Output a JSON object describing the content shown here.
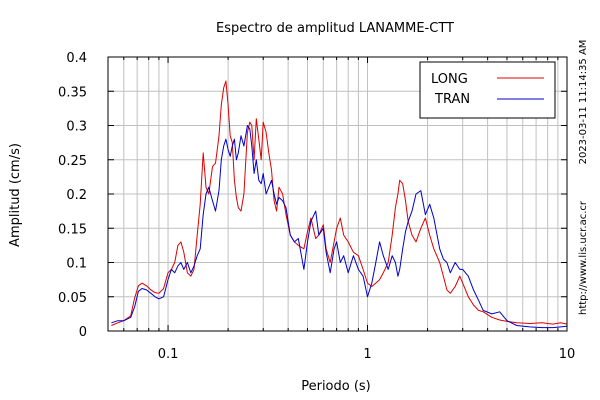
{
  "chart_data": {
    "type": "line",
    "title": "Espectro de amplitud LANAMME-CTT",
    "xlabel": "Periodo (s)",
    "ylabel": "Amplitud (cm/s)",
    "x_scale": "log",
    "xlim": [
      0.05,
      10
    ],
    "ylim": [
      0,
      0.4
    ],
    "x_ticks": [
      {
        "value": 0.1,
        "label": "0.1"
      },
      {
        "value": 1,
        "label": "1"
      },
      {
        "value": 10,
        "label": "10"
      }
    ],
    "y_ticks": [
      {
        "value": 0,
        "label": "0"
      },
      {
        "value": 0.05,
        "label": "0.05"
      },
      {
        "value": 0.1,
        "label": "0.1"
      },
      {
        "value": 0.15,
        "label": "0.15"
      },
      {
        "value": 0.2,
        "label": "0.2"
      },
      {
        "value": 0.25,
        "label": "0.25"
      },
      {
        "value": 0.3,
        "label": "0.3"
      },
      {
        "value": 0.35,
        "label": "0.35"
      },
      {
        "value": 0.4,
        "label": "0.4"
      }
    ],
    "grid": true,
    "legend_position": "top-right",
    "series": [
      {
        "name": "LONG",
        "color": "#dd0000",
        "points": [
          [
            0.052,
            0.008
          ],
          [
            0.056,
            0.012
          ],
          [
            0.06,
            0.015
          ],
          [
            0.065,
            0.022
          ],
          [
            0.068,
            0.048
          ],
          [
            0.071,
            0.066
          ],
          [
            0.074,
            0.07
          ],
          [
            0.078,
            0.066
          ],
          [
            0.082,
            0.06
          ],
          [
            0.086,
            0.056
          ],
          [
            0.09,
            0.055
          ],
          [
            0.095,
            0.062
          ],
          [
            0.1,
            0.085
          ],
          [
            0.104,
            0.09
          ],
          [
            0.108,
            0.1
          ],
          [
            0.112,
            0.125
          ],
          [
            0.116,
            0.13
          ],
          [
            0.12,
            0.115
          ],
          [
            0.125,
            0.085
          ],
          [
            0.13,
            0.08
          ],
          [
            0.135,
            0.09
          ],
          [
            0.14,
            0.14
          ],
          [
            0.145,
            0.185
          ],
          [
            0.15,
            0.26
          ],
          [
            0.155,
            0.21
          ],
          [
            0.16,
            0.2
          ],
          [
            0.167,
            0.24
          ],
          [
            0.173,
            0.245
          ],
          [
            0.18,
            0.285
          ],
          [
            0.185,
            0.33
          ],
          [
            0.19,
            0.355
          ],
          [
            0.195,
            0.365
          ],
          [
            0.2,
            0.33
          ],
          [
            0.205,
            0.285
          ],
          [
            0.21,
            0.275
          ],
          [
            0.215,
            0.22
          ],
          [
            0.22,
            0.195
          ],
          [
            0.225,
            0.18
          ],
          [
            0.232,
            0.175
          ],
          [
            0.24,
            0.2
          ],
          [
            0.25,
            0.29
          ],
          [
            0.257,
            0.305
          ],
          [
            0.263,
            0.3
          ],
          [
            0.27,
            0.25
          ],
          [
            0.277,
            0.31
          ],
          [
            0.285,
            0.28
          ],
          [
            0.293,
            0.25
          ],
          [
            0.3,
            0.305
          ],
          [
            0.31,
            0.29
          ],
          [
            0.32,
            0.26
          ],
          [
            0.33,
            0.235
          ],
          [
            0.34,
            0.19
          ],
          [
            0.35,
            0.175
          ],
          [
            0.36,
            0.21
          ],
          [
            0.375,
            0.2
          ],
          [
            0.39,
            0.17
          ],
          [
            0.41,
            0.14
          ],
          [
            0.43,
            0.13
          ],
          [
            0.45,
            0.125
          ],
          [
            0.48,
            0.12
          ],
          [
            0.5,
            0.145
          ],
          [
            0.52,
            0.165
          ],
          [
            0.55,
            0.135
          ],
          [
            0.57,
            0.14
          ],
          [
            0.6,
            0.155
          ],
          [
            0.62,
            0.12
          ],
          [
            0.65,
            0.1
          ],
          [
            0.68,
            0.13
          ],
          [
            0.7,
            0.15
          ],
          [
            0.73,
            0.165
          ],
          [
            0.76,
            0.14
          ],
          [
            0.8,
            0.13
          ],
          [
            0.85,
            0.115
          ],
          [
            0.9,
            0.11
          ],
          [
            0.95,
            0.09
          ],
          [
            1.0,
            0.07
          ],
          [
            1.05,
            0.065
          ],
          [
            1.1,
            0.07
          ],
          [
            1.15,
            0.075
          ],
          [
            1.2,
            0.085
          ],
          [
            1.27,
            0.1
          ],
          [
            1.33,
            0.14
          ],
          [
            1.38,
            0.18
          ],
          [
            1.42,
            0.2
          ],
          [
            1.45,
            0.22
          ],
          [
            1.5,
            0.215
          ],
          [
            1.55,
            0.19
          ],
          [
            1.6,
            0.16
          ],
          [
            1.67,
            0.14
          ],
          [
            1.75,
            0.13
          ],
          [
            1.85,
            0.15
          ],
          [
            1.95,
            0.165
          ],
          [
            2.05,
            0.14
          ],
          [
            2.15,
            0.12
          ],
          [
            2.3,
            0.1
          ],
          [
            2.4,
            0.08
          ],
          [
            2.5,
            0.06
          ],
          [
            2.6,
            0.055
          ],
          [
            2.75,
            0.065
          ],
          [
            2.9,
            0.08
          ],
          [
            3.0,
            0.07
          ],
          [
            3.2,
            0.05
          ],
          [
            3.4,
            0.038
          ],
          [
            3.6,
            0.03
          ],
          [
            3.8,
            0.028
          ],
          [
            4.2,
            0.02
          ],
          [
            4.6,
            0.016
          ],
          [
            5.0,
            0.014
          ],
          [
            5.6,
            0.012
          ],
          [
            6.5,
            0.011
          ],
          [
            7.5,
            0.012
          ],
          [
            8.5,
            0.01
          ],
          [
            9.3,
            0.012
          ],
          [
            10.0,
            0.01
          ]
        ]
      },
      {
        "name": "TRAN",
        "color": "#0000cc",
        "points": [
          [
            0.052,
            0.012
          ],
          [
            0.056,
            0.015
          ],
          [
            0.06,
            0.015
          ],
          [
            0.065,
            0.02
          ],
          [
            0.068,
            0.035
          ],
          [
            0.071,
            0.058
          ],
          [
            0.074,
            0.062
          ],
          [
            0.078,
            0.06
          ],
          [
            0.082,
            0.055
          ],
          [
            0.086,
            0.05
          ],
          [
            0.09,
            0.047
          ],
          [
            0.095,
            0.05
          ],
          [
            0.1,
            0.075
          ],
          [
            0.104,
            0.09
          ],
          [
            0.108,
            0.085
          ],
          [
            0.112,
            0.095
          ],
          [
            0.116,
            0.1
          ],
          [
            0.12,
            0.09
          ],
          [
            0.125,
            0.1
          ],
          [
            0.13,
            0.085
          ],
          [
            0.135,
            0.095
          ],
          [
            0.14,
            0.11
          ],
          [
            0.145,
            0.12
          ],
          [
            0.15,
            0.17
          ],
          [
            0.155,
            0.2
          ],
          [
            0.16,
            0.21
          ],
          [
            0.167,
            0.19
          ],
          [
            0.173,
            0.175
          ],
          [
            0.18,
            0.205
          ],
          [
            0.185,
            0.25
          ],
          [
            0.19,
            0.27
          ],
          [
            0.195,
            0.28
          ],
          [
            0.2,
            0.265
          ],
          [
            0.205,
            0.255
          ],
          [
            0.21,
            0.27
          ],
          [
            0.215,
            0.28
          ],
          [
            0.22,
            0.25
          ],
          [
            0.225,
            0.26
          ],
          [
            0.232,
            0.285
          ],
          [
            0.24,
            0.27
          ],
          [
            0.25,
            0.3
          ],
          [
            0.257,
            0.295
          ],
          [
            0.263,
            0.27
          ],
          [
            0.27,
            0.23
          ],
          [
            0.277,
            0.25
          ],
          [
            0.285,
            0.22
          ],
          [
            0.293,
            0.215
          ],
          [
            0.3,
            0.23
          ],
          [
            0.31,
            0.2
          ],
          [
            0.32,
            0.21
          ],
          [
            0.33,
            0.22
          ],
          [
            0.34,
            0.2
          ],
          [
            0.35,
            0.185
          ],
          [
            0.36,
            0.195
          ],
          [
            0.375,
            0.19
          ],
          [
            0.39,
            0.18
          ],
          [
            0.41,
            0.14
          ],
          [
            0.43,
            0.13
          ],
          [
            0.45,
            0.135
          ],
          [
            0.48,
            0.09
          ],
          [
            0.5,
            0.13
          ],
          [
            0.52,
            0.16
          ],
          [
            0.55,
            0.175
          ],
          [
            0.57,
            0.14
          ],
          [
            0.6,
            0.15
          ],
          [
            0.62,
            0.115
          ],
          [
            0.65,
            0.085
          ],
          [
            0.68,
            0.12
          ],
          [
            0.7,
            0.13
          ],
          [
            0.73,
            0.1
          ],
          [
            0.76,
            0.11
          ],
          [
            0.8,
            0.085
          ],
          [
            0.85,
            0.11
          ],
          [
            0.9,
            0.09
          ],
          [
            0.95,
            0.08
          ],
          [
            1.0,
            0.05
          ],
          [
            1.05,
            0.07
          ],
          [
            1.1,
            0.1
          ],
          [
            1.15,
            0.13
          ],
          [
            1.2,
            0.11
          ],
          [
            1.27,
            0.09
          ],
          [
            1.33,
            0.11
          ],
          [
            1.38,
            0.1
          ],
          [
            1.42,
            0.08
          ],
          [
            1.45,
            0.09
          ],
          [
            1.5,
            0.12
          ],
          [
            1.55,
            0.145
          ],
          [
            1.6,
            0.16
          ],
          [
            1.67,
            0.175
          ],
          [
            1.75,
            0.2
          ],
          [
            1.85,
            0.205
          ],
          [
            1.95,
            0.17
          ],
          [
            2.05,
            0.185
          ],
          [
            2.15,
            0.165
          ],
          [
            2.3,
            0.12
          ],
          [
            2.4,
            0.105
          ],
          [
            2.5,
            0.1
          ],
          [
            2.6,
            0.085
          ],
          [
            2.75,
            0.1
          ],
          [
            2.9,
            0.09
          ],
          [
            3.0,
            0.09
          ],
          [
            3.2,
            0.08
          ],
          [
            3.4,
            0.06
          ],
          [
            3.6,
            0.045
          ],
          [
            3.8,
            0.03
          ],
          [
            4.2,
            0.025
          ],
          [
            4.6,
            0.028
          ],
          [
            5.0,
            0.015
          ],
          [
            5.6,
            0.008
          ],
          [
            6.5,
            0.006
          ],
          [
            7.5,
            0.005
          ],
          [
            8.5,
            0.005
          ],
          [
            9.3,
            0.006
          ],
          [
            10.0,
            0.007
          ]
        ]
      }
    ]
  },
  "side_texts": {
    "timestamp": "2023-03-11 11:14:35 AM",
    "url": "http://www.lis.ucr.ac.cr"
  },
  "colors": {
    "grid": "#c0c0c0",
    "frame": "#000000"
  }
}
